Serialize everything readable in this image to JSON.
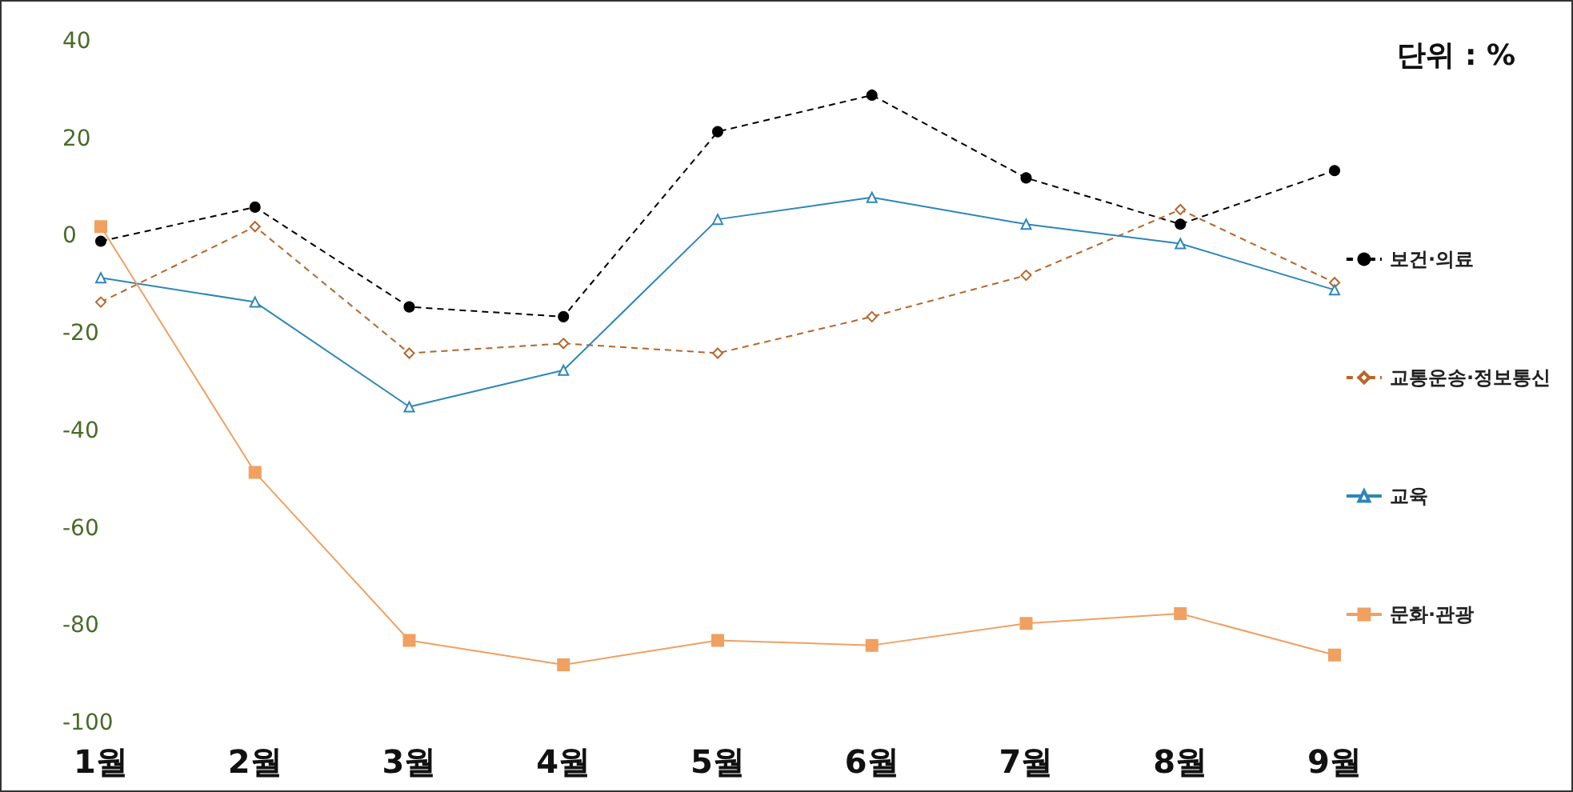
{
  "chart_data": {
    "type": "line",
    "categories": [
      "1월",
      "2월",
      "3월",
      "4월",
      "5월",
      "6월",
      "7월",
      "8월",
      "9월"
    ],
    "series": [
      {
        "name": "보건·의료",
        "color": "#000000",
        "marker": "circle",
        "line_style": "dashed",
        "values": [
          -1,
          6,
          -14.5,
          -16.5,
          21.5,
          29,
          12,
          2.5,
          13.5
        ]
      },
      {
        "name": "교통운송·정보통신",
        "color": "#b5662a",
        "marker": "diamond",
        "line_style": "dashed",
        "values": [
          -13.5,
          2,
          -24,
          -22,
          -24,
          -16.5,
          -8,
          5.5,
          -9.5
        ]
      },
      {
        "name": "교육",
        "color": "#2e86b8",
        "marker": "triangle",
        "line_style": "solid",
        "values": [
          -8.5,
          -13.5,
          -35,
          -27.5,
          3.5,
          8,
          2.5,
          -1.5,
          -11
        ]
      },
      {
        "name": "문화·관광",
        "color": "#f0a060",
        "marker": "square",
        "line_style": "solid",
        "values": [
          2,
          -48.5,
          -83,
          -88,
          -83,
          -84,
          -79.5,
          -77.5,
          -86
        ]
      }
    ],
    "ylim": [
      -100,
      40
    ],
    "yticks": [
      -100,
      -80,
      -60,
      -40,
      -20,
      0,
      20,
      40
    ],
    "grid": false,
    "legend": "right",
    "annotations": [
      "단위 : %"
    ]
  }
}
